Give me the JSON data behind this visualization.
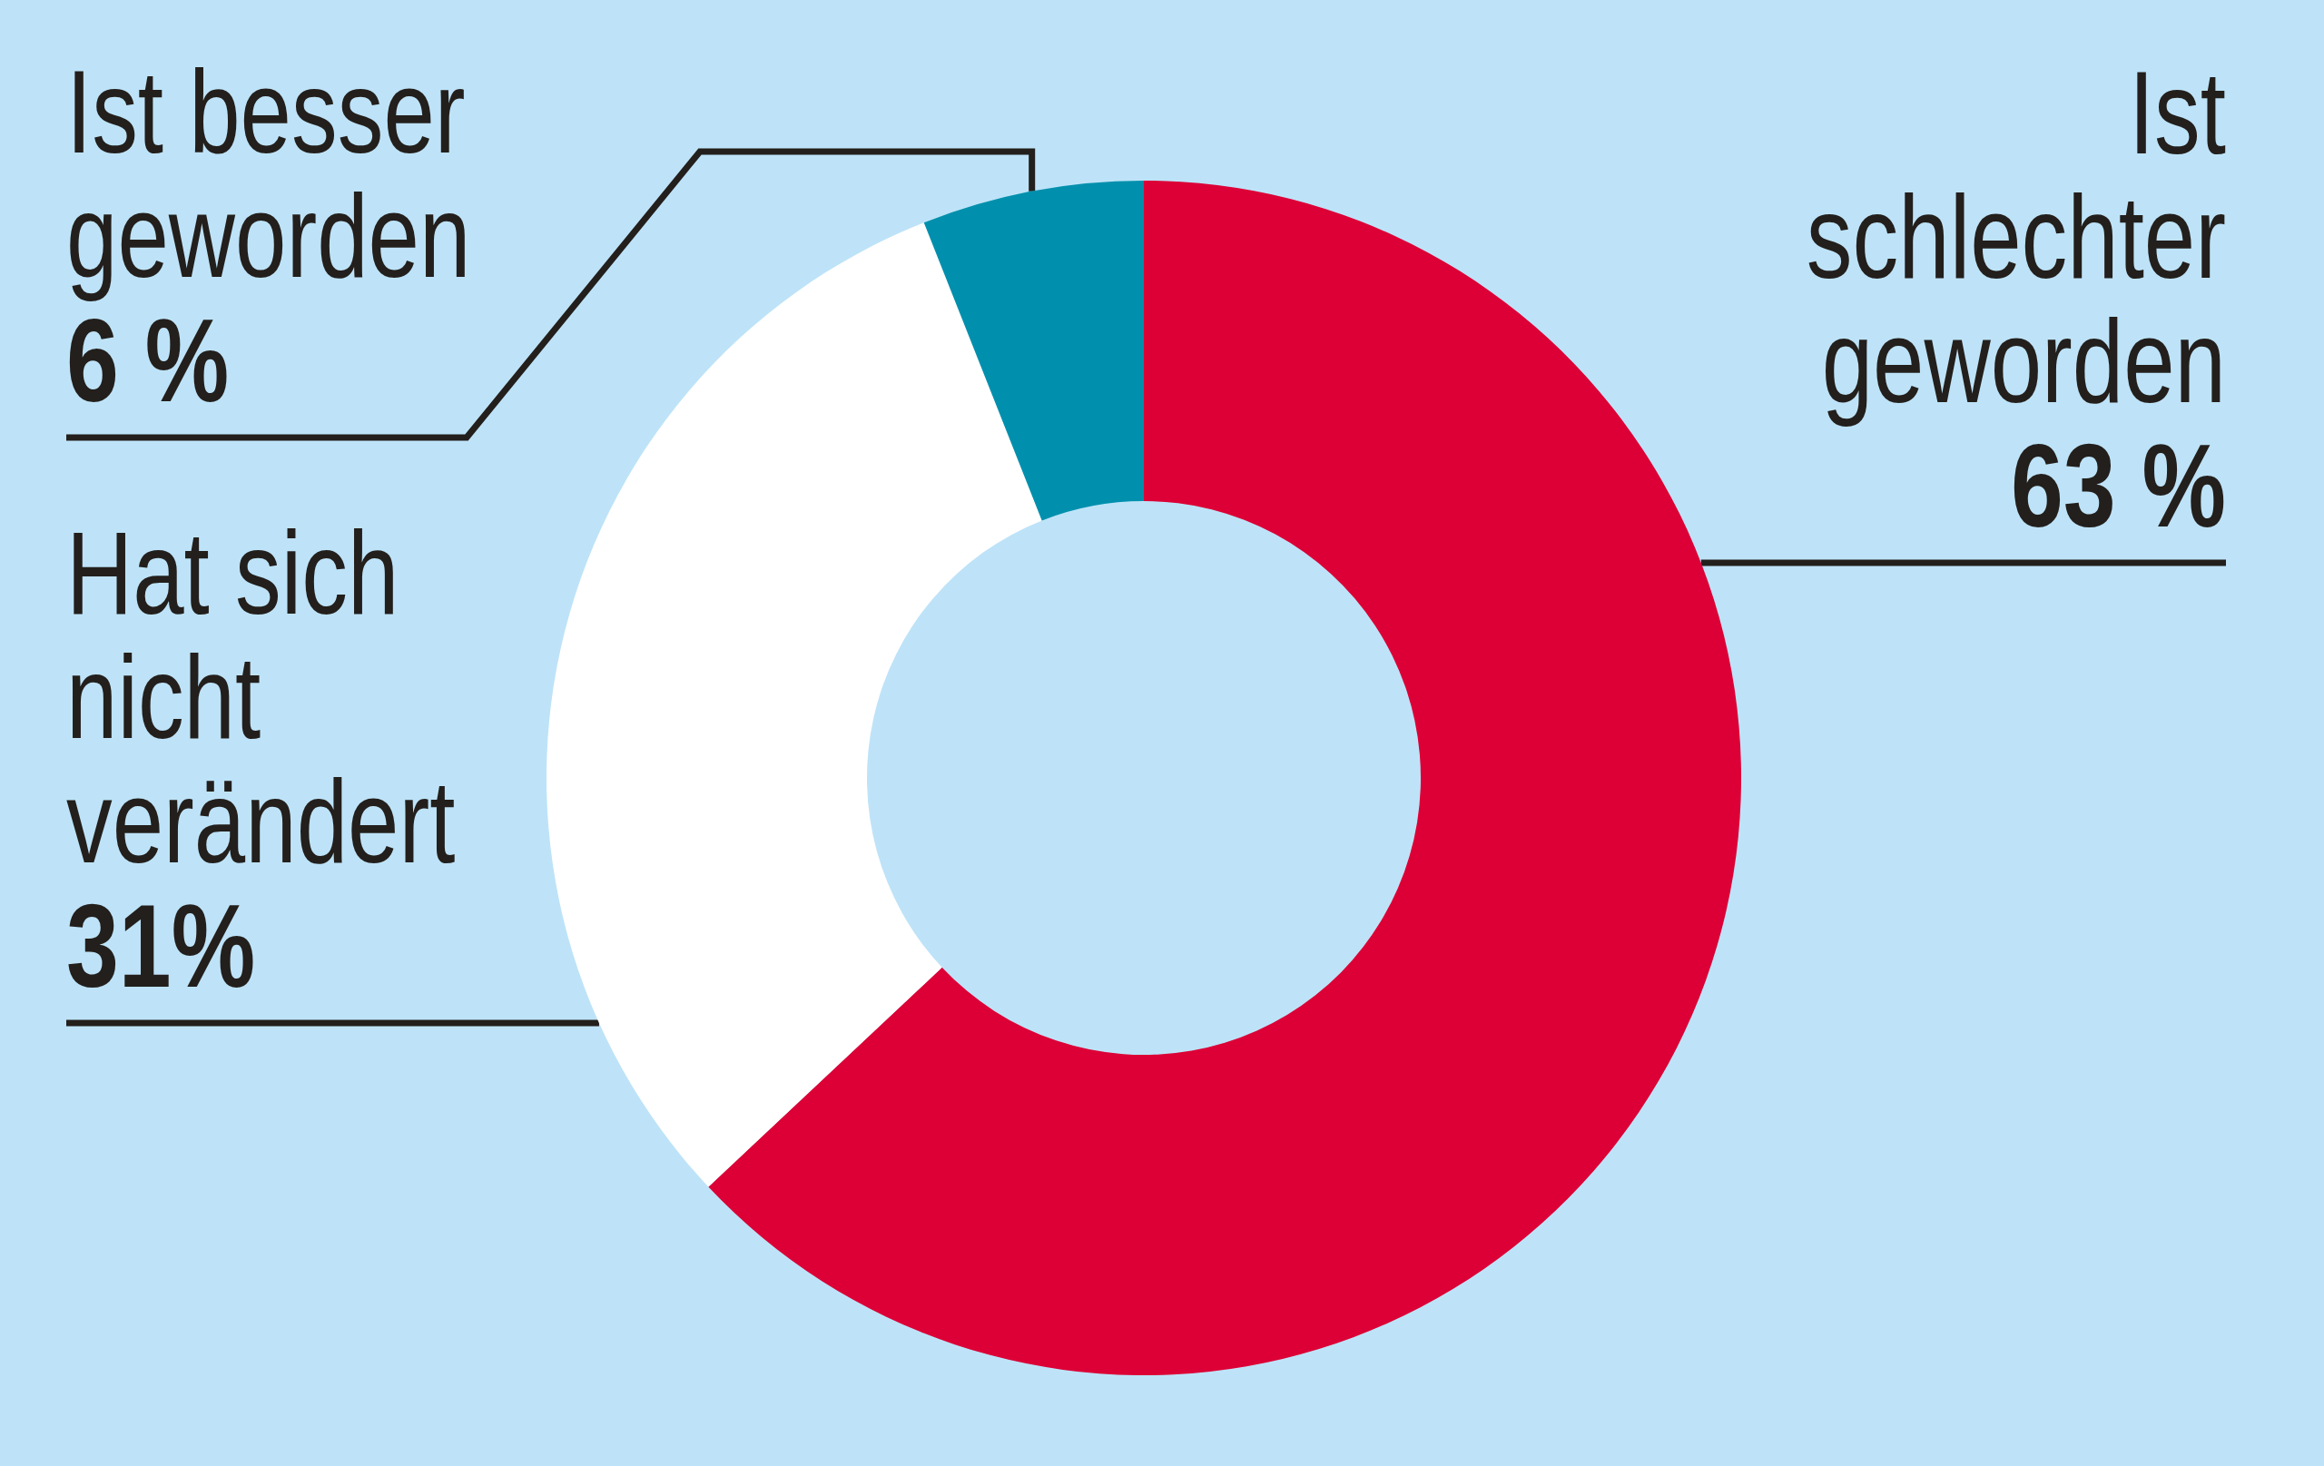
{
  "chart_data": {
    "type": "donut",
    "categories": [
      "Ist schlechter geworden",
      "Hat sich nicht verändert",
      "Ist besser geworden"
    ],
    "values": [
      63,
      31,
      6
    ],
    "colors": [
      "#dc0036",
      "#ffffff",
      "#0090ad"
    ],
    "value_labels": [
      "63 %",
      "31%",
      "6 %"
    ]
  }
}
